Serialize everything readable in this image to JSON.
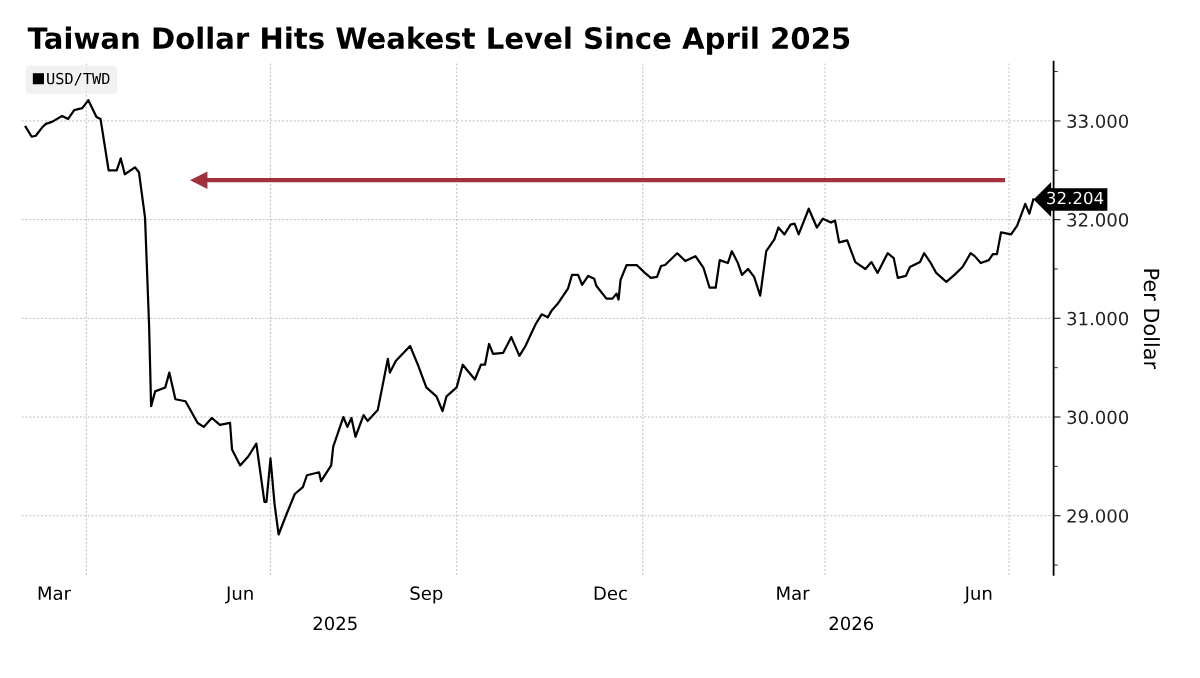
{
  "chart_data": {
    "type": "line",
    "title": "Taiwan Dollar Hits Weakest Level Since April 2025",
    "ylabel": "Per Dollar",
    "x": [
      "2025-03-02",
      "2025-03-05",
      "2025-03-07",
      "2025-03-10",
      "2025-03-12",
      "2025-03-15",
      "2025-03-20",
      "2025-03-23",
      "2025-03-26",
      "2025-03-30",
      "2025-04-02",
      "2025-04-06",
      "2025-04-08",
      "2025-04-12",
      "2025-04-16",
      "2025-04-18",
      "2025-04-20",
      "2025-04-25",
      "2025-04-27",
      "2025-04-30",
      "2025-05-02",
      "2025-05-03",
      "2025-05-05",
      "2025-05-10",
      "2025-05-12",
      "2025-05-15",
      "2025-05-20",
      "2025-05-26",
      "2025-05-29",
      "2025-06-02",
      "2025-06-06",
      "2025-06-11",
      "2025-06-12",
      "2025-06-16",
      "2025-06-20",
      "2025-06-24",
      "2025-06-28",
      "2025-06-29",
      "2025-07-01",
      "2025-07-03",
      "2025-07-05",
      "2025-07-09",
      "2025-07-13",
      "2025-07-17",
      "2025-07-19",
      "2025-07-25",
      "2025-07-26",
      "2025-07-31",
      "2025-08-01",
      "2025-08-06",
      "2025-08-08",
      "2025-08-10",
      "2025-08-12",
      "2025-08-16",
      "2025-08-18",
      "2025-08-23",
      "2025-08-28",
      "2025-08-29",
      "2025-09-01",
      "2025-09-08",
      "2025-09-12",
      "2025-09-16",
      "2025-09-21",
      "2025-09-24",
      "2025-09-26",
      "2025-10-01",
      "2025-10-04",
      "2025-10-10",
      "2025-10-13",
      "2025-10-15",
      "2025-10-17",
      "2025-10-19",
      "2025-10-24",
      "2025-10-28",
      "2025-11-01",
      "2025-11-04",
      "2025-11-09",
      "2025-11-12",
      "2025-11-15",
      "2025-11-17",
      "2025-11-20",
      "2025-11-25",
      "2025-11-27",
      "2025-11-30",
      "2025-12-02",
      "2025-12-05",
      "2025-12-08",
      "2025-12-09",
      "2025-12-14",
      "2025-12-17",
      "2025-12-19",
      "2025-12-20",
      "2025-12-21",
      "2025-12-24",
      "2025-12-29",
      "2026-01-02",
      "2026-01-05",
      "2026-01-08",
      "2026-01-10",
      "2026-01-12",
      "2026-01-18",
      "2026-01-22",
      "2026-01-27",
      "2026-01-31",
      "2026-02-03",
      "2026-02-06",
      "2026-02-08",
      "2026-02-12",
      "2026-02-14",
      "2026-02-17",
      "2026-02-19",
      "2026-02-22",
      "2026-02-25",
      "2026-02-28",
      "2026-03-03",
      "2026-03-07",
      "2026-03-09",
      "2026-03-12",
      "2026-03-15",
      "2026-03-17",
      "2026-03-19",
      "2026-03-24",
      "2026-03-28",
      "2026-03-31",
      "2026-04-04",
      "2026-04-06",
      "2026-04-08",
      "2026-04-12",
      "2026-04-16",
      "2026-04-21",
      "2026-04-24",
      "2026-04-27",
      "2026-05-02",
      "2026-05-05",
      "2026-05-07",
      "2026-05-11",
      "2026-05-13",
      "2026-05-18",
      "2026-05-20",
      "2026-05-23",
      "2026-05-26",
      "2026-05-31",
      "2026-06-04",
      "2026-06-08",
      "2026-06-12",
      "2026-06-14",
      "2026-06-17",
      "2026-06-21",
      "2026-06-23",
      "2026-06-25",
      "2026-06-27",
      "2026-07-02",
      "2026-07-05",
      "2026-07-09",
      "2026-07-11",
      "2026-07-13"
    ],
    "series": [
      {
        "name": "USD/TWD",
        "color": "#000000",
        "values": [
          32.94,
          32.84,
          32.85,
          32.93,
          32.97,
          32.99,
          33.05,
          33.02,
          33.11,
          33.13,
          33.21,
          33.04,
          33.02,
          32.5,
          32.5,
          32.62,
          32.46,
          32.53,
          32.48,
          32.02,
          30.93,
          30.11,
          30.26,
          30.3,
          30.45,
          30.18,
          30.16,
          29.94,
          29.9,
          29.99,
          29.92,
          29.94,
          29.67,
          29.51,
          29.6,
          29.73,
          29.14,
          29.14,
          29.58,
          29.12,
          28.81,
          29.02,
          29.22,
          29.29,
          29.41,
          29.44,
          29.35,
          29.51,
          29.7,
          30.0,
          29.9,
          29.99,
          29.8,
          30.02,
          29.96,
          30.07,
          30.59,
          30.45,
          30.57,
          30.72,
          30.52,
          30.3,
          30.21,
          30.06,
          30.21,
          30.3,
          30.53,
          30.38,
          30.53,
          30.53,
          30.74,
          30.64,
          30.65,
          30.81,
          30.62,
          30.72,
          30.94,
          31.04,
          31.01,
          31.08,
          31.15,
          31.3,
          31.44,
          31.44,
          31.34,
          31.43,
          31.4,
          31.33,
          31.2,
          31.2,
          31.25,
          31.19,
          31.39,
          31.54,
          31.54,
          31.46,
          31.41,
          31.42,
          31.53,
          31.54,
          31.66,
          31.58,
          31.63,
          31.51,
          31.31,
          31.31,
          31.59,
          31.56,
          31.68,
          31.56,
          31.44,
          31.5,
          31.42,
          31.23,
          31.68,
          31.8,
          31.92,
          31.85,
          31.95,
          31.96,
          31.85,
          32.11,
          31.92,
          32.01,
          31.97,
          31.99,
          31.77,
          31.79,
          31.57,
          31.5,
          31.57,
          31.46,
          31.66,
          31.61,
          31.41,
          31.43,
          31.52,
          31.57,
          31.66,
          31.57,
          31.46,
          31.37,
          31.44,
          31.52,
          31.66,
          31.63,
          31.56,
          31.59,
          31.65,
          31.65,
          31.87,
          31.85,
          31.94,
          32.16,
          32.06,
          32.204
        ],
        "value_labels": [
          null,
          null,
          null,
          null,
          null,
          null,
          null,
          null,
          null,
          null,
          null,
          null,
          null,
          null,
          null,
          null,
          null,
          null,
          null,
          null,
          null,
          null,
          null,
          null,
          null,
          null,
          null,
          null,
          null,
          null,
          null,
          null,
          null,
          null,
          null,
          null,
          null,
          null,
          null,
          null,
          null,
          null,
          null,
          null,
          null,
          null,
          null,
          null,
          null,
          null,
          null,
          null,
          null,
          null,
          null,
          null,
          null,
          null,
          null,
          null,
          null,
          null,
          null,
          null,
          null,
          null,
          null,
          null,
          null,
          null,
          null,
          null,
          null,
          null,
          null,
          null,
          null,
          null,
          null,
          null,
          null,
          null,
          null,
          null,
          null,
          null,
          null,
          null,
          null,
          null,
          null,
          null,
          null,
          null,
          null,
          null,
          null,
          null,
          null,
          null,
          null,
          null,
          null,
          null,
          null,
          null,
          null,
          null,
          null,
          null,
          null,
          null,
          null,
          null,
          null,
          null,
          null,
          null,
          null,
          null,
          null,
          null,
          null,
          null,
          null,
          null,
          null,
          null,
          null,
          null,
          null,
          null,
          null,
          null,
          null,
          null,
          null,
          null,
          null,
          null,
          null,
          null,
          null,
          null,
          null,
          null,
          null,
          null,
          null,
          null,
          null,
          null,
          null,
          null,
          null,
          "32.204"
        ]
      }
    ],
    "xlim": [
      "2025-02-28",
      "2026-07-23"
    ],
    "xticks": [
      {
        "value": "2025-03-16",
        "label": "Mar"
      },
      {
        "value": "2025-04-01",
        "label": null
      },
      {
        "value": "2025-06-16",
        "label": "Jun"
      },
      {
        "value": "2025-07-01",
        "label": null
      },
      {
        "value": "2025-09-16",
        "label": "Sep"
      },
      {
        "value": "2025-10-01",
        "label": null
      },
      {
        "value": "2025-12-16",
        "label": "Dec"
      },
      {
        "value": "2026-01-01",
        "label": null
      },
      {
        "value": "2026-03-16",
        "label": "Mar"
      },
      {
        "value": "2026-04-01",
        "label": null
      },
      {
        "value": "2026-06-16",
        "label": "Jun"
      },
      {
        "value": "2026-07-01",
        "label": null
      }
    ],
    "ylim": [
      28.4,
      33.6
    ],
    "yticks": [
      {
        "value": 28.5,
        "label": null
      },
      {
        "value": 29,
        "label": "29.000"
      },
      {
        "value": 29.5,
        "label": null
      },
      {
        "value": 30,
        "label": "30.000"
      },
      {
        "value": 30.5,
        "label": null
      },
      {
        "value": 31,
        "label": "31.000"
      },
      {
        "value": 31.5,
        "label": null
      },
      {
        "value": 32,
        "label": "32.000"
      },
      {
        "value": 32.5,
        "label": null
      },
      {
        "value": 33,
        "label": "33.000"
      },
      {
        "value": 33.5,
        "label": null
      }
    ],
    "ref_lines": [
      {
        "axis": "y",
        "value": 32.4,
        "color": "#a3303d"
      }
    ],
    "x2lim": [
      "2025-02-28",
      "2026-07-23"
    ],
    "x2ticks": [
      {
        "value": "2025-08-02",
        "label": "2025"
      },
      {
        "value": "2026-04-14",
        "label": "2026"
      }
    ],
    "grid": true,
    "legend": "top left",
    "marker": "none",
    "line_style": "solid"
  }
}
